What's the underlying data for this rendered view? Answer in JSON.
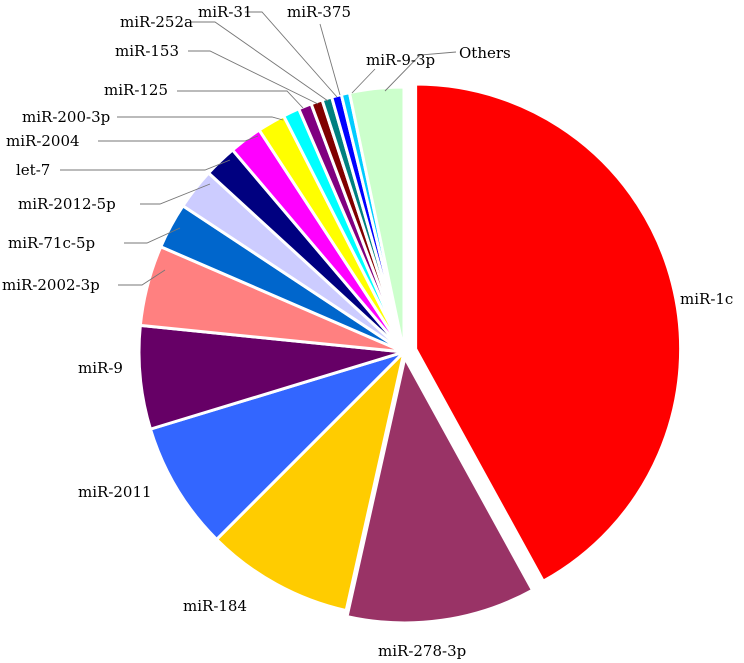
{
  "chart_data": {
    "type": "pie",
    "title": "",
    "legend": "none",
    "start_angle_deg": -90,
    "direction": "clockwise",
    "slices": [
      {
        "label": "miR-1c",
        "value": 42.0,
        "color": "#ff0000"
      },
      {
        "label": "miR-278-3p",
        "value": 11.5,
        "color": "#993366"
      },
      {
        "label": "miR-184",
        "value": 9.0,
        "color": "#ffcc00"
      },
      {
        "label": "miR-2011",
        "value": 7.8,
        "color": "#3366ff"
      },
      {
        "label": "miR-9",
        "value": 6.3,
        "color": "#660066"
      },
      {
        "label": "miR-2002-3p",
        "value": 4.9,
        "color": "#ff8080"
      },
      {
        "label": "miR-71c-5p",
        "value": 2.8,
        "color": "#0066cc"
      },
      {
        "label": "miR-2012-5p",
        "value": 2.5,
        "color": "#ccccff"
      },
      {
        "label": "let-7",
        "value": 2.0,
        "color": "#000080"
      },
      {
        "label": "miR-2004",
        "value": 2.0,
        "color": "#ff00ff"
      },
      {
        "label": "miR-200-3p",
        "value": 1.7,
        "color": "#ffff00"
      },
      {
        "label": "miR-125",
        "value": 1.0,
        "color": "#00ffff"
      },
      {
        "label": "miR-153",
        "value": 0.8,
        "color": "#800080"
      },
      {
        "label": "miR-252a",
        "value": 0.7,
        "color": "#800000"
      },
      {
        "label": "miR-31",
        "value": 0.6,
        "color": "#008080"
      },
      {
        "label": "miR-375",
        "value": 0.6,
        "color": "#0000ff"
      },
      {
        "label": "miR-9-3p",
        "value": 0.5,
        "color": "#00ccff"
      },
      {
        "label": "Others",
        "value": 3.3,
        "color": "#ccffcc"
      }
    ]
  }
}
